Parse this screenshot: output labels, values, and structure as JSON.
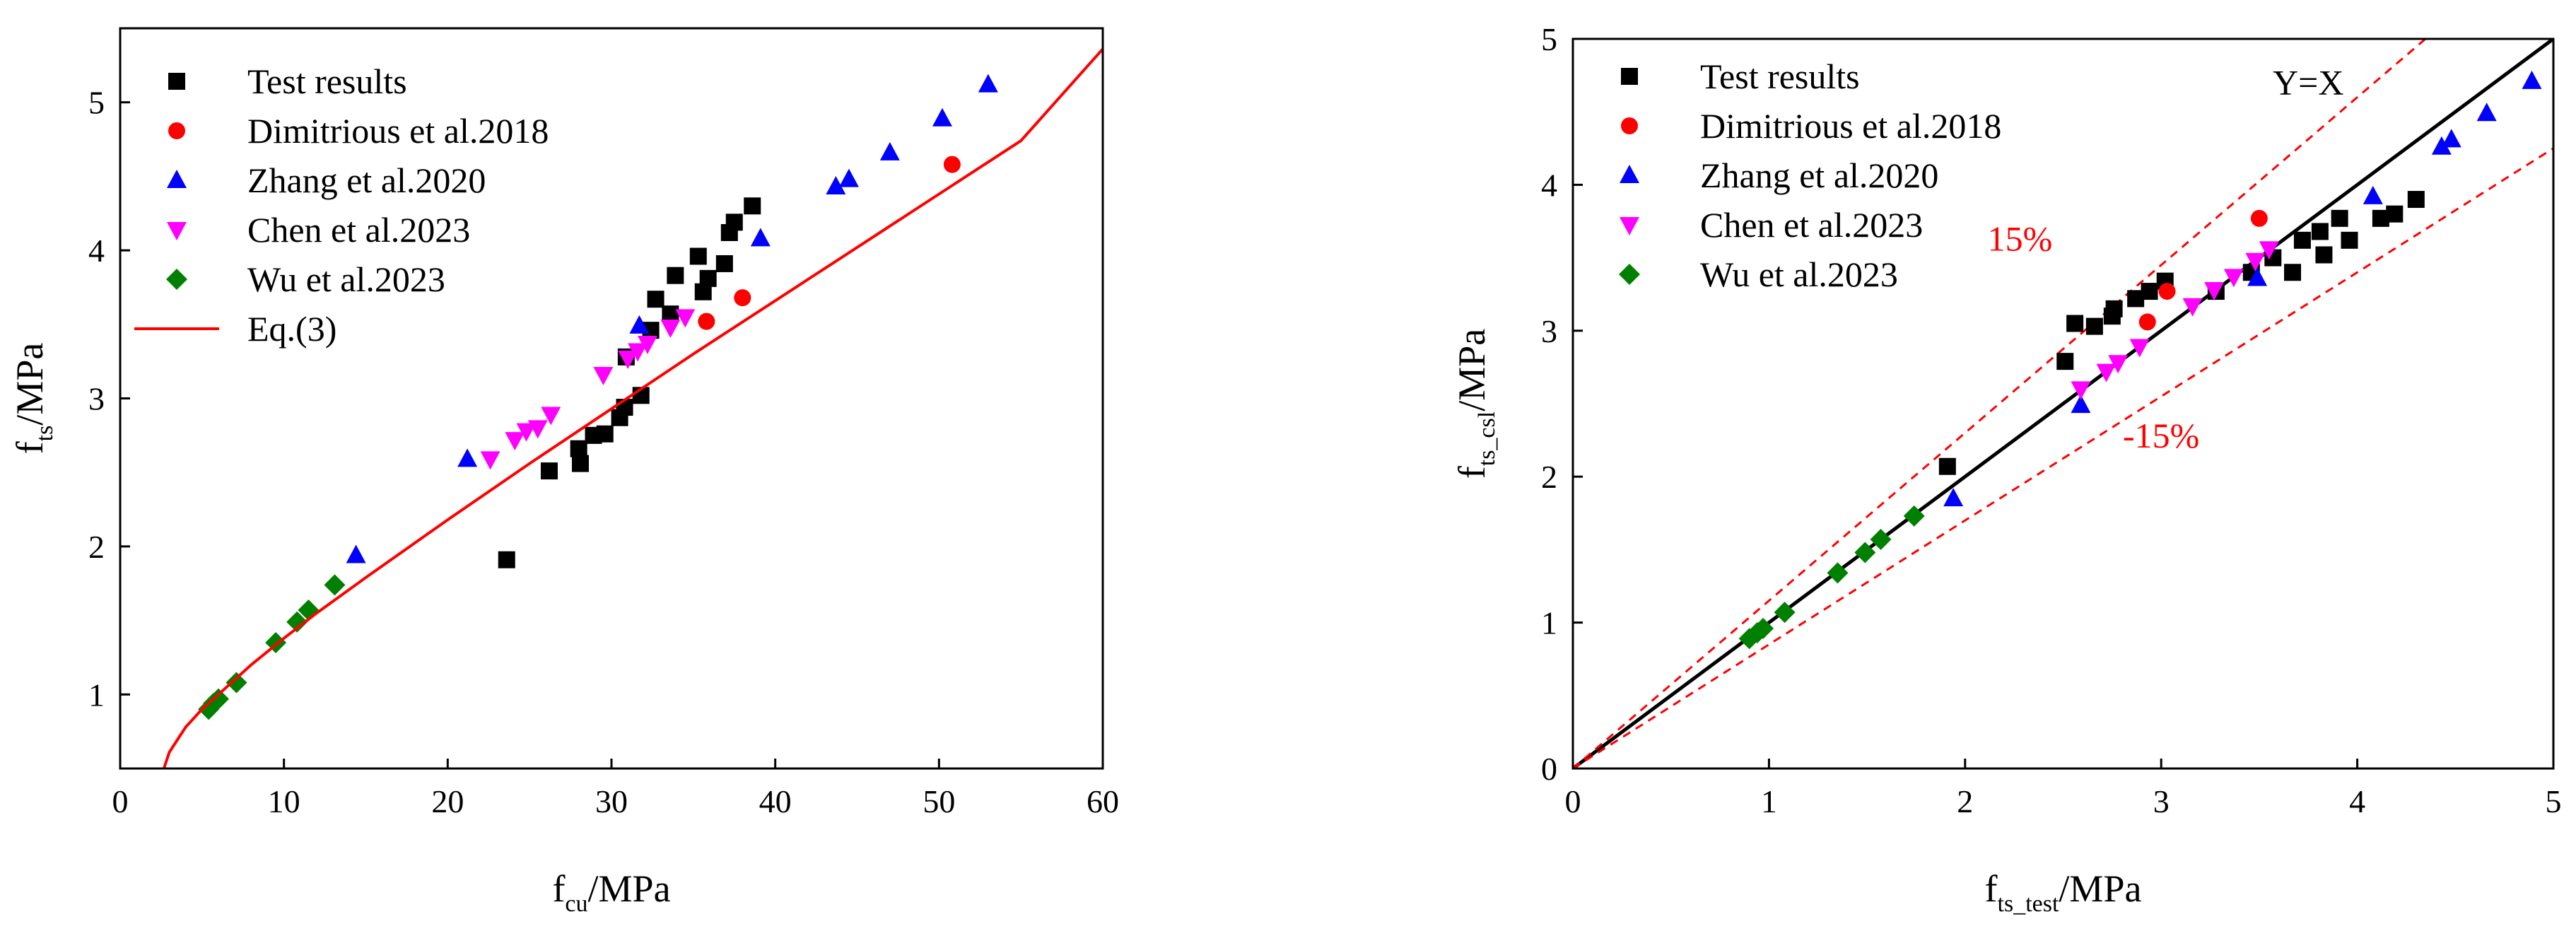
{
  "chart_data": [
    {
      "type": "scatter",
      "xlabel": "f",
      "xlabel_sub": "cu",
      "xlabel_unit": "/MPa",
      "ylabel": "f",
      "ylabel_sub": "ts",
      "ylabel_unit": "/MPa",
      "xlim": [
        0,
        60
      ],
      "ylim": [
        0.5,
        5.5
      ],
      "xticks": [
        0,
        10,
        20,
        30,
        40,
        50,
        60
      ],
      "yticks": [
        1,
        2,
        3,
        4,
        5
      ],
      "legend_position": "top-left",
      "series": [
        {
          "name": "Test results",
          "color": "#000000",
          "marker": "square",
          "points": [
            [
              23.6,
              1.91
            ],
            [
              26.2,
              2.51
            ],
            [
              28.1,
              2.56
            ],
            [
              28.0,
              2.66
            ],
            [
              28.9,
              2.75
            ],
            [
              29.6,
              2.76
            ],
            [
              30.5,
              2.87
            ],
            [
              30.8,
              2.94
            ],
            [
              31.8,
              3.02
            ],
            [
              30.9,
              3.28
            ],
            [
              32.4,
              3.46
            ],
            [
              32.7,
              3.67
            ],
            [
              33.6,
              3.57
            ],
            [
              33.9,
              3.83
            ],
            [
              35.3,
              3.96
            ],
            [
              35.6,
              3.72
            ],
            [
              35.9,
              3.81
            ],
            [
              36.9,
              3.91
            ],
            [
              37.2,
              4.12
            ],
            [
              37.5,
              4.19
            ],
            [
              38.6,
              4.3
            ]
          ]
        },
        {
          "name": "Dimitrious et al.2018",
          "color": "#ff0000",
          "marker": "circle",
          "points": [
            [
              35.8,
              3.52
            ],
            [
              38.0,
              3.68
            ],
            [
              50.8,
              4.58
            ]
          ]
        },
        {
          "name": "Zhang et al.2020",
          "color": "#0000ff",
          "marker": "triangle-up",
          "points": [
            [
              14.4,
              1.94
            ],
            [
              21.2,
              2.59
            ],
            [
              31.7,
              3.49
            ],
            [
              39.1,
              4.08
            ],
            [
              43.7,
              4.43
            ],
            [
              44.5,
              4.48
            ],
            [
              47.0,
              4.66
            ],
            [
              50.2,
              4.89
            ],
            [
              53.0,
              5.12
            ]
          ]
        },
        {
          "name": "Chen et al.2023",
          "color": "#ff00ff",
          "marker": "triangle-down",
          "points": [
            [
              22.6,
              2.59
            ],
            [
              24.1,
              2.72
            ],
            [
              24.8,
              2.78
            ],
            [
              25.5,
              2.8
            ],
            [
              26.3,
              2.89
            ],
            [
              29.5,
              3.16
            ],
            [
              31.0,
              3.27
            ],
            [
              31.6,
              3.32
            ],
            [
              32.2,
              3.37
            ],
            [
              33.6,
              3.48
            ],
            [
              34.5,
              3.55
            ]
          ]
        },
        {
          "name": "Wu et al.2023",
          "color": "#008000",
          "marker": "diamond",
          "points": [
            [
              5.4,
              0.9
            ],
            [
              5.7,
              0.94
            ],
            [
              6.0,
              0.97
            ],
            [
              7.1,
              1.08
            ],
            [
              9.5,
              1.35
            ],
            [
              10.8,
              1.49
            ],
            [
              11.5,
              1.57
            ],
            [
              13.1,
              1.74
            ]
          ]
        },
        {
          "name": "Eq.(3)",
          "color": "#ff0000",
          "marker": "line",
          "points": [
            [
              2.67,
              0.5
            ],
            [
              3,
              0.61
            ],
            [
              4,
              0.78
            ],
            [
              5,
              0.9
            ],
            [
              6,
              1.0
            ],
            [
              8,
              1.2
            ],
            [
              10,
              1.38
            ],
            [
              12,
              1.55
            ],
            [
              15,
              1.79
            ],
            [
              20,
              2.18
            ],
            [
              25,
              2.56
            ],
            [
              30,
              2.93
            ],
            [
              35,
              3.3
            ],
            [
              40,
              3.66
            ],
            [
              45,
              4.02
            ],
            [
              50,
              4.38
            ],
            [
              55,
              4.74
            ],
            [
              60,
              5.36
            ]
          ]
        }
      ]
    },
    {
      "type": "scatter",
      "xlabel": "f",
      "xlabel_sub": "ts_test",
      "xlabel_unit": "/MPa",
      "ylabel": "f",
      "ylabel_sub": "ts_csl",
      "ylabel_unit": "/MPa",
      "xlim": [
        0,
        5
      ],
      "ylim": [
        0,
        5
      ],
      "xticks": [
        0,
        1,
        2,
        3,
        4,
        5
      ],
      "yticks": [
        0,
        1,
        2,
        3,
        4,
        5
      ],
      "legend_position": "top-left",
      "reference_lines": [
        {
          "label": "Y=X",
          "slope": 1.0,
          "color": "#000000",
          "style": "solid"
        },
        {
          "label": "15%",
          "slope": 1.15,
          "color": "#ff0000",
          "style": "dashed"
        },
        {
          "label": "-15%",
          "slope": 0.85,
          "color": "#ff0000",
          "style": "dashed"
        }
      ],
      "series": [
        {
          "name": "Test results",
          "color": "#000000",
          "marker": "square",
          "points": [
            [
              1.91,
              2.07
            ],
            [
              2.51,
              2.79
            ],
            [
              2.56,
              3.05
            ],
            [
              2.66,
              3.03
            ],
            [
              2.75,
              3.1
            ],
            [
              2.76,
              3.15
            ],
            [
              2.87,
              3.22
            ],
            [
              2.94,
              3.27
            ],
            [
              3.02,
              3.34
            ],
            [
              3.28,
              3.27
            ],
            [
              3.46,
              3.4
            ],
            [
              3.57,
              3.5
            ],
            [
              3.67,
              3.4
            ],
            [
              3.72,
              3.62
            ],
            [
              3.81,
              3.68
            ],
            [
              3.83,
              3.52
            ],
            [
              3.91,
              3.77
            ],
            [
              3.96,
              3.62
            ],
            [
              4.12,
              3.77
            ],
            [
              4.19,
              3.8
            ],
            [
              4.3,
              3.9
            ]
          ]
        },
        {
          "name": "Dimitrious et al.2018",
          "color": "#ff0000",
          "marker": "circle",
          "points": [
            [
              2.93,
              3.06
            ],
            [
              3.03,
              3.27
            ],
            [
              3.5,
              3.77
            ]
          ]
        },
        {
          "name": "Zhang et al.2020",
          "color": "#0000ff",
          "marker": "triangle-up",
          "points": [
            [
              1.94,
              1.85
            ],
            [
              2.59,
              2.49
            ],
            [
              3.49,
              3.36
            ],
            [
              4.08,
              3.92
            ],
            [
              4.43,
              4.26
            ],
            [
              4.48,
              4.31
            ],
            [
              4.66,
              4.49
            ],
            [
              4.89,
              4.71
            ]
          ]
        },
        {
          "name": "Chen et al.2023",
          "color": "#ff00ff",
          "marker": "triangle-down",
          "points": [
            [
              2.59,
              2.6
            ],
            [
              2.72,
              2.72
            ],
            [
              2.78,
              2.78
            ],
            [
              2.89,
              2.89
            ],
            [
              3.16,
              3.17
            ],
            [
              3.27,
              3.28
            ],
            [
              3.37,
              3.37
            ],
            [
              3.48,
              3.48
            ],
            [
              3.55,
              3.56
            ]
          ]
        },
        {
          "name": "Wu et al.2023",
          "color": "#008000",
          "marker": "diamond",
          "points": [
            [
              0.9,
              0.89
            ],
            [
              0.94,
              0.93
            ],
            [
              0.97,
              0.96
            ],
            [
              1.08,
              1.07
            ],
            [
              1.35,
              1.34
            ],
            [
              1.49,
              1.48
            ],
            [
              1.57,
              1.57
            ],
            [
              1.74,
              1.73
            ]
          ]
        }
      ]
    }
  ]
}
